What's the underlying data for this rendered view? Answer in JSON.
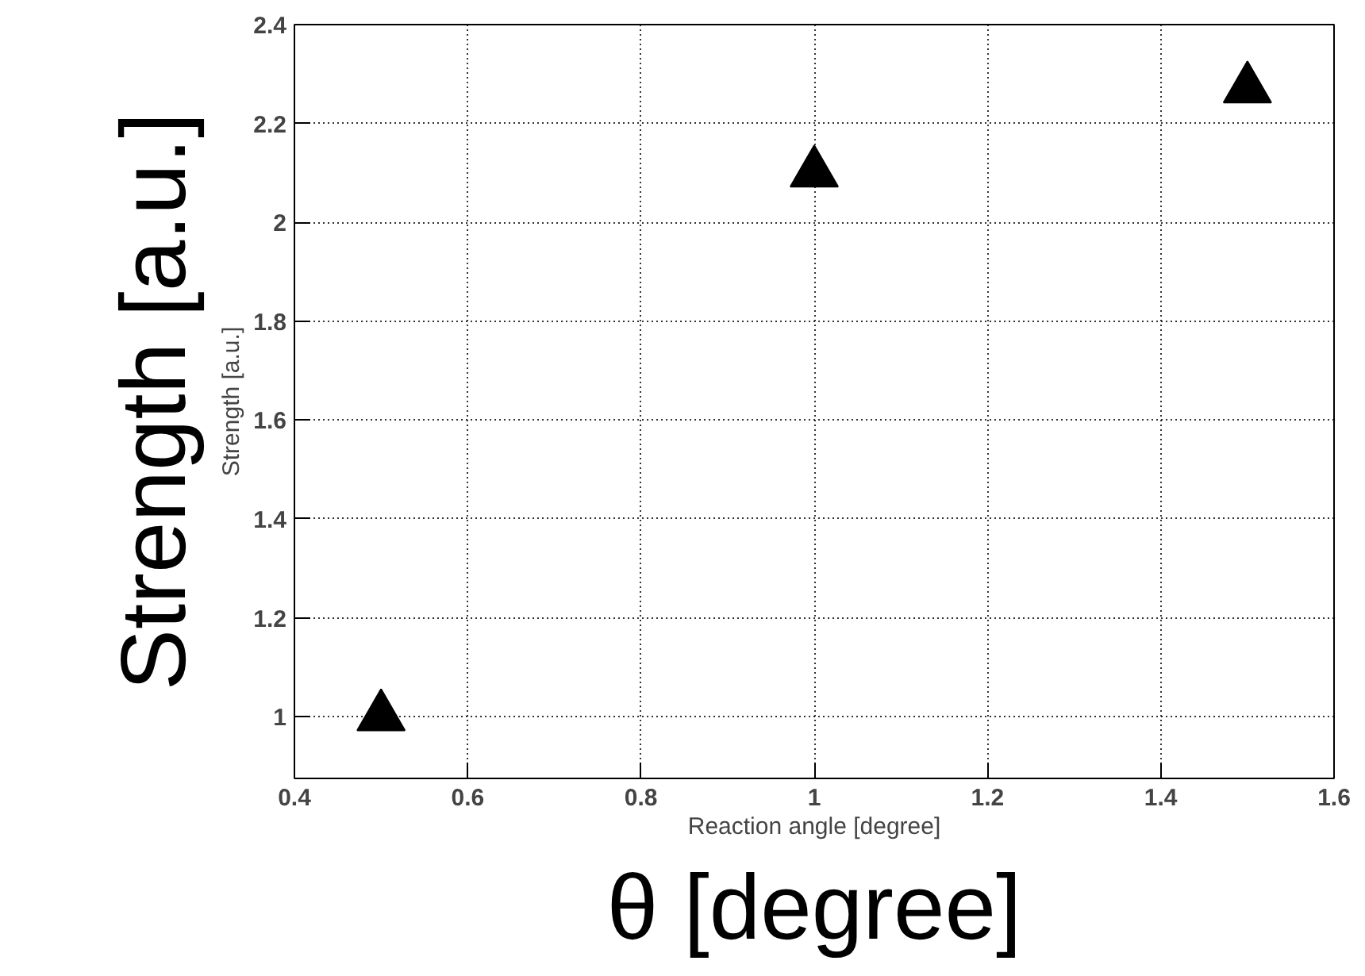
{
  "chart_data": {
    "type": "scatter",
    "xlabel": "Reaction angle [degree]",
    "ylabel": "Strength [a.u.]",
    "x": [
      0.5,
      1.0,
      1.5
    ],
    "series": [
      {
        "color": "#000000",
        "values": [
          1.0,
          2.1,
          2.27
        ]
      }
    ],
    "xlim": [
      0.4,
      1.6
    ],
    "xticks": [
      0.4,
      0.6,
      0.8,
      1,
      1.2,
      1.4,
      1.6
    ],
    "ylim": [
      0.875,
      2.4
    ],
    "yticks": [
      1,
      1.2,
      1.4,
      1.6,
      1.8,
      2,
      2.2,
      2.4
    ],
    "grid": true,
    "marker": "triangle",
    "annotations": [
      "θ [degree]",
      "Strength [a.u.]"
    ]
  }
}
